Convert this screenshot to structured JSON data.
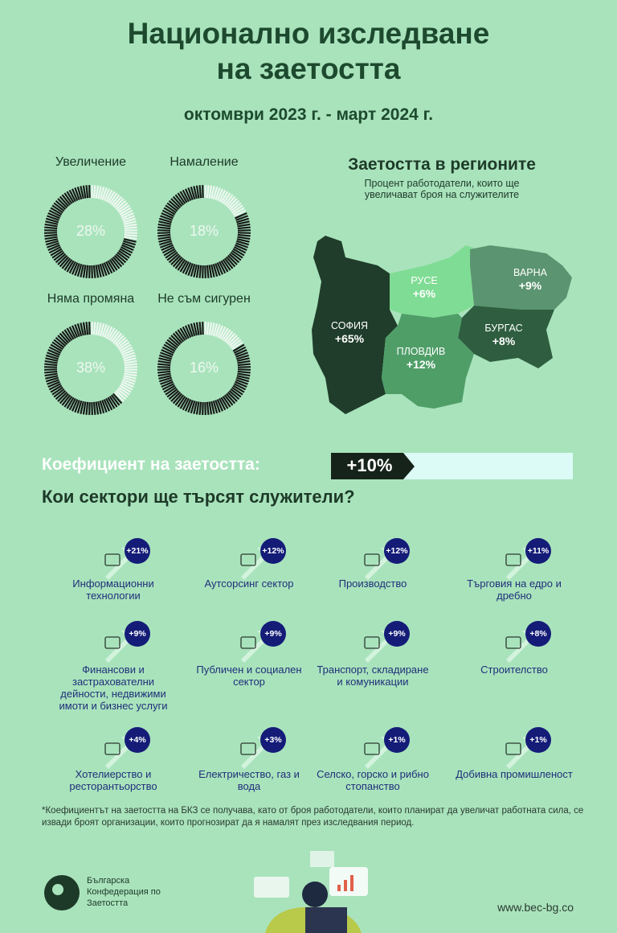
{
  "header": {
    "title": "Национално изследване на заетостта",
    "subtitle": "октомври 2023 г. - март 2024 г."
  },
  "donuts": [
    {
      "label": "Увеличение",
      "value": 28,
      "value_label": "28%"
    },
    {
      "label": "Намаление",
      "value": 18,
      "value_label": "18%"
    },
    {
      "label": "Няма промяна",
      "value": 38,
      "value_label": "38%"
    },
    {
      "label": "Не съм сигурен",
      "value": 16,
      "value_label": "16%"
    }
  ],
  "map": {
    "title": "Заетостта в регионите",
    "subtitle": "Процент работодатели, които ще увеличават броя на служителите",
    "regions": [
      {
        "name": "СОФИЯ",
        "value": "+65%"
      },
      {
        "name": "РУСЕ",
        "value": "+6%"
      },
      {
        "name": "ВАРНА",
        "value": "+9%"
      },
      {
        "name": "БУРГАС",
        "value": "+8%"
      },
      {
        "name": "ПЛОВДИВ",
        "value": "+12%"
      }
    ]
  },
  "coefficient": {
    "label": "Коефициент на заетостта:",
    "value": "+10%"
  },
  "sectors": {
    "title": "Кои сектори ще търсят служители?",
    "items": [
      {
        "label": "Информационни технологии",
        "change": "+21%"
      },
      {
        "label": "Аутсорсинг сектор",
        "change": "+12%"
      },
      {
        "label": "Производство",
        "change": "+12%"
      },
      {
        "label": "Търговия на едро и дребно",
        "change": "+11%"
      },
      {
        "label": "Финансови и застрахователни дейности, недвижими имоти и бизнес услуги",
        "change": "+9%"
      },
      {
        "label": "Публичен и социален сектор",
        "change": "+9%"
      },
      {
        "label": "Транспорт, складиране и комуникации",
        "change": "+9%"
      },
      {
        "label": "Строителство",
        "change": "+8%"
      },
      {
        "label": "Хотелиерство и ресторантьорство",
        "change": "+4%"
      },
      {
        "label": "Електричество, газ и вода",
        "change": "+3%"
      },
      {
        "label": "Селско, горско и рибно стопанство",
        "change": "+1%"
      },
      {
        "label": "Добивна промишленост",
        "change": "+1%"
      }
    ]
  },
  "footnote": "*Коефициентът на заетостта на БКЗ се получава, като от броя работодатели, които планират да увеличат работната сила, се извади броят организации, които прогнозират да я намалят през изследвания период.",
  "footer": {
    "organization": "Българска Конфедерация по Заетостта",
    "website": "www.bec-bg.co"
  }
}
